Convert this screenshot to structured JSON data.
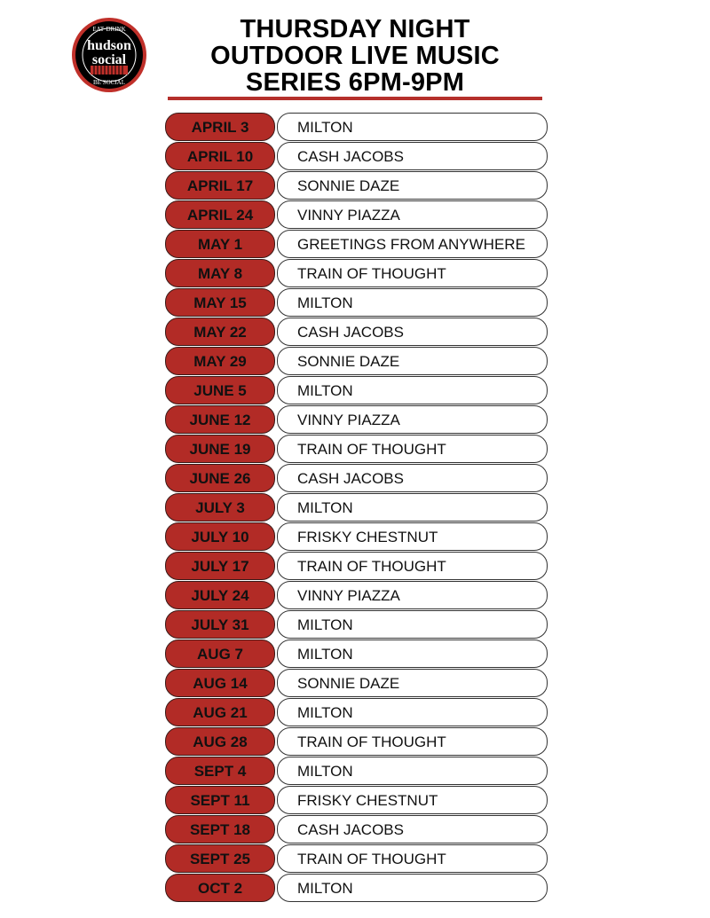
{
  "logo": {
    "top_text": "EAT·DRINK",
    "line1": "hudson",
    "line2": "social",
    "bottom_text": "BE SOCIAL",
    "colors": {
      "ring": "#c0302a",
      "body": "#000000"
    }
  },
  "title": [
    "THURSDAY NIGHT",
    "OUTDOOR LIVE MUSIC",
    "SERIES 6PM-9PM"
  ],
  "colors": {
    "accent": "#b22b26"
  },
  "schedule": [
    {
      "date": "APRIL 3",
      "band": "MILTON"
    },
    {
      "date": "APRIL 10",
      "band": "CASH JACOBS"
    },
    {
      "date": "APRIL 17",
      "band": "SONNIE DAZE"
    },
    {
      "date": "APRIL 24",
      "band": "VINNY PIAZZA"
    },
    {
      "date": "MAY 1",
      "band": "GREETINGS FROM ANYWHERE"
    },
    {
      "date": "MAY 8",
      "band": "TRAIN OF THOUGHT"
    },
    {
      "date": "MAY 15",
      "band": "MILTON"
    },
    {
      "date": "MAY 22",
      "band": "CASH JACOBS"
    },
    {
      "date": "MAY 29",
      "band": "SONNIE DAZE"
    },
    {
      "date": "JUNE 5",
      "band": "MILTON"
    },
    {
      "date": "JUNE 12",
      "band": "VINNY PIAZZA"
    },
    {
      "date": "JUNE 19",
      "band": "TRAIN OF THOUGHT"
    },
    {
      "date": "JUNE 26",
      "band": "CASH JACOBS"
    },
    {
      "date": "JULY 3",
      "band": "MILTON"
    },
    {
      "date": "JULY 10",
      "band": "FRISKY CHESTNUT"
    },
    {
      "date": "JULY 17",
      "band": "TRAIN OF THOUGHT"
    },
    {
      "date": "JULY 24",
      "band": "VINNY PIAZZA"
    },
    {
      "date": "JULY 31",
      "band": "MILTON"
    },
    {
      "date": "AUG 7",
      "band": "MILTON"
    },
    {
      "date": "AUG 14",
      "band": "SONNIE DAZE"
    },
    {
      "date": "AUG 21",
      "band": "MILTON"
    },
    {
      "date": "AUG 28",
      "band": "TRAIN OF THOUGHT"
    },
    {
      "date": "SEPT 4",
      "band": "MILTON"
    },
    {
      "date": "SEPT 11",
      "band": "FRISKY CHESTNUT"
    },
    {
      "date": "SEPT 18",
      "band": "CASH JACOBS"
    },
    {
      "date": "SEPT 25",
      "band": "TRAIN OF THOUGHT"
    },
    {
      "date": "OCT 2",
      "band": "MILTON"
    }
  ]
}
